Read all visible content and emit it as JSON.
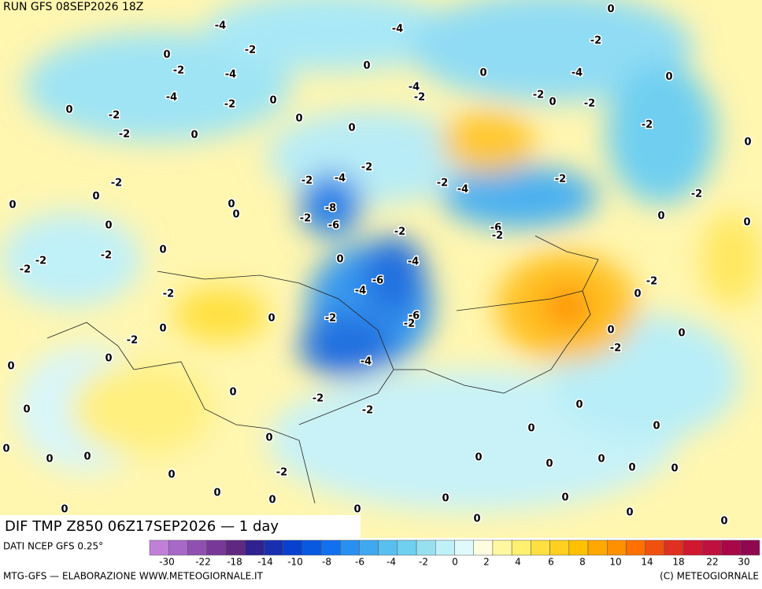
{
  "header": {
    "run": "RUN GFS 08SEP2026 18Z"
  },
  "map": {
    "title": "DIF TMP Z850 06Z17SEP2026 — 1 day",
    "contour_labels": [
      -4,
      -4,
      0,
      -2,
      0,
      -2,
      -4,
      0,
      -2,
      0,
      -4,
      0,
      -4,
      -2,
      -4,
      0,
      -2,
      0,
      -2,
      0,
      -2,
      -2,
      0,
      -2,
      -2,
      0,
      0,
      0,
      -2,
      -2,
      -4,
      -2,
      -4,
      -2,
      -2,
      0,
      -8,
      -2,
      -6,
      -2,
      0,
      0,
      0,
      0,
      -2,
      -6,
      -2,
      0,
      0,
      -2,
      -2,
      -2,
      0,
      0,
      -4,
      -6,
      -4,
      -2,
      -2,
      0,
      0,
      -2,
      -2,
      -6,
      -2,
      0,
      0,
      -2,
      0,
      -4,
      0,
      0,
      0,
      -2,
      -2,
      0,
      0,
      0,
      0,
      0,
      0,
      0,
      0,
      0,
      0,
      0,
      0,
      0,
      0,
      -2,
      0,
      0,
      0,
      0,
      0,
      0,
      0,
      0,
      0
    ]
  },
  "legend": {
    "colors": [
      "#c080d8",
      "#a868c8",
      "#9050b0",
      "#783898",
      "#602880",
      "#302090",
      "#1830b0",
      "#0840d0",
      "#0858e0",
      "#1070f0",
      "#2890f0",
      "#40a8f0",
      "#58c0f0",
      "#70d0f0",
      "#98e0f0",
      "#c0f0f8",
      "#e0fafc",
      "#fffde0",
      "#fff8a0",
      "#fff070",
      "#ffe040",
      "#ffd020",
      "#ffc000",
      "#ffa800",
      "#ff9000",
      "#ff7000",
      "#f05010",
      "#e03020",
      "#d01830",
      "#c01040",
      "#a80848",
      "#900850"
    ],
    "ticks": [
      -30,
      -22,
      -18,
      -14,
      -10,
      -8,
      -6,
      -4,
      -2,
      0,
      2,
      4,
      6,
      8,
      10,
      14,
      18,
      22,
      30
    ]
  },
  "footer": {
    "source": "DATI NCEP GFS 0.25°",
    "credit": "MTG-GFS — ELABORAZIONE WWW.METEOGIORNALE.IT",
    "copyright": "(C) METEOGIORNALE"
  }
}
